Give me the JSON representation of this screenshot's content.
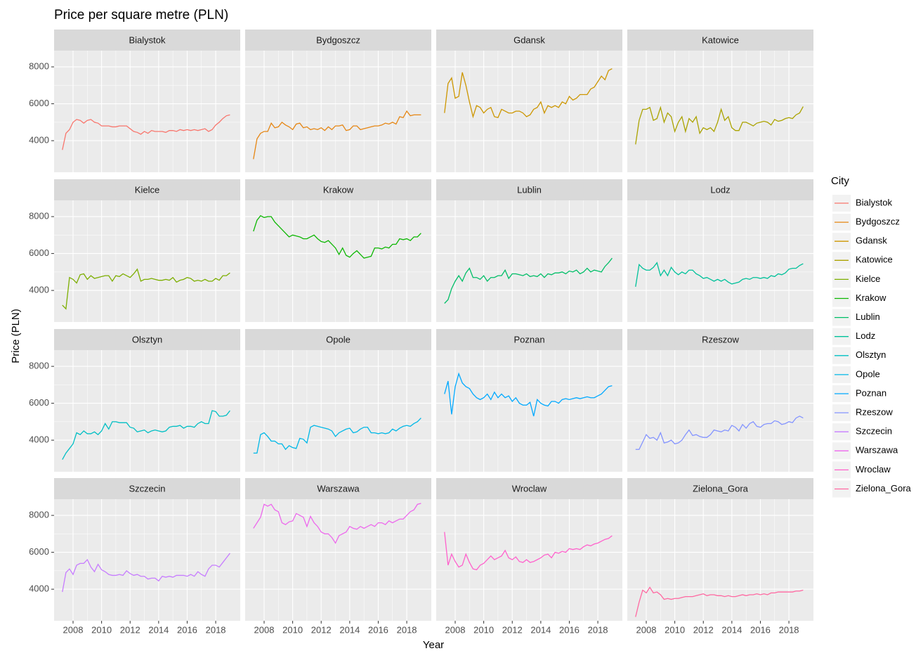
{
  "chart_data": {
    "type": "line",
    "facet": true,
    "title": "Price per square metre (PLN)",
    "xlabel": "Year",
    "ylabel": "Price (PLN)",
    "legend_title": "City",
    "legend": "right",
    "grid": true,
    "x": [
      2007.25,
      2007.5,
      2007.75,
      2008,
      2008.25,
      2008.5,
      2008.75,
      2009,
      2009.25,
      2009.5,
      2009.75,
      2010,
      2010.25,
      2010.5,
      2010.75,
      2011,
      2011.25,
      2011.5,
      2011.75,
      2012,
      2012.25,
      2012.5,
      2012.75,
      2013,
      2013.25,
      2013.5,
      2013.75,
      2014,
      2014.25,
      2014.5,
      2014.75,
      2015,
      2015.25,
      2015.5,
      2015.75,
      2016,
      2016.25,
      2016.5,
      2016.75,
      2017,
      2017.25,
      2017.5,
      2017.75,
      2018,
      2018.25,
      2018.5,
      2018.75,
      2019
    ],
    "xlim": [
      2006.67,
      2019.72
    ],
    "xticks": [
      2008,
      2010,
      2012,
      2014,
      2016,
      2018
    ],
    "ylim": [
      2290,
      8880
    ],
    "yticks": [
      4000,
      6000,
      8000
    ],
    "series": [
      {
        "name": "Bialystok",
        "color": "#F8766D",
        "values": [
          3500,
          4400,
          4600,
          5000,
          5150,
          5100,
          4950,
          5100,
          5150,
          5000,
          4950,
          4800,
          4800,
          4800,
          4750,
          4750,
          4800,
          4800,
          4800,
          4650,
          4500,
          4450,
          4350,
          4500,
          4400,
          4550,
          4500,
          4500,
          4500,
          4450,
          4550,
          4550,
          4500,
          4600,
          4550,
          4600,
          4550,
          4600,
          4550,
          4600,
          4650,
          4500,
          4600,
          4850,
          5000,
          5200,
          5350,
          5400
        ]
      },
      {
        "name": "Bydgoszcz",
        "color": "#E68613",
        "values": [
          3000,
          4100,
          4400,
          4500,
          4500,
          4950,
          4700,
          4750,
          5000,
          4850,
          4750,
          4600,
          4900,
          4950,
          4700,
          4750,
          4600,
          4650,
          4600,
          4700,
          4550,
          4750,
          4600,
          4800,
          4800,
          4850,
          4550,
          4600,
          4800,
          4800,
          4600,
          4650,
          4700,
          4750,
          4800,
          4800,
          4850,
          4950,
          4900,
          5000,
          4900,
          5300,
          5250,
          5600,
          5350,
          5400,
          5400,
          5400
        ]
      },
      {
        "name": "Gdansk",
        "color": "#CD9600",
        "values": [
          5500,
          7100,
          7400,
          6300,
          6400,
          7700,
          7000,
          6100,
          5300,
          5900,
          5800,
          5500,
          5700,
          5800,
          5300,
          5250,
          5700,
          5600,
          5500,
          5500,
          5600,
          5600,
          5500,
          5300,
          5400,
          5700,
          5800,
          6100,
          5500,
          5900,
          5800,
          5900,
          5800,
          6100,
          6000,
          6400,
          6200,
          6300,
          6500,
          6500,
          6500,
          6800,
          6900,
          7200,
          7500,
          7300,
          7800,
          7900
        ]
      },
      {
        "name": "Katowice",
        "color": "#ABA300",
        "values": [
          3800,
          5100,
          5700,
          5700,
          5800,
          5100,
          5200,
          5800,
          5000,
          5500,
          5300,
          4500,
          5000,
          5300,
          4500,
          5200,
          5000,
          5300,
          4400,
          4700,
          4600,
          4700,
          4500,
          5000,
          5700,
          5100,
          5300,
          4700,
          4550,
          4550,
          5000,
          5000,
          4900,
          4800,
          4950,
          5000,
          5050,
          5000,
          4850,
          5150,
          5050,
          5100,
          5200,
          5250,
          5200,
          5400,
          5500,
          5850
        ]
      },
      {
        "name": "Kielce",
        "color": "#7CAE00",
        "values": [
          3200,
          3000,
          4700,
          4600,
          4400,
          4850,
          4900,
          4600,
          4800,
          4650,
          4700,
          4750,
          4800,
          4800,
          4500,
          4800,
          4750,
          4900,
          4800,
          4700,
          4900,
          5150,
          4500,
          4600,
          4600,
          4650,
          4600,
          4550,
          4550,
          4600,
          4550,
          4700,
          4450,
          4550,
          4600,
          4700,
          4650,
          4500,
          4550,
          4500,
          4600,
          4500,
          4500,
          4650,
          4550,
          4800,
          4800,
          4950
        ]
      },
      {
        "name": "Krakow",
        "color": "#0CB702",
        "values": [
          7200,
          7800,
          8050,
          7950,
          8000,
          8000,
          7700,
          7500,
          7300,
          7100,
          6900,
          7000,
          6950,
          6900,
          6800,
          6800,
          6900,
          7000,
          6800,
          6650,
          6600,
          6700,
          6500,
          6300,
          5950,
          6300,
          5900,
          5800,
          6000,
          6150,
          5950,
          5750,
          5800,
          5850,
          6300,
          6300,
          6250,
          6350,
          6300,
          6500,
          6500,
          6800,
          6750,
          6800,
          6700,
          6900,
          6900,
          7100
        ]
      },
      {
        "name": "Lublin",
        "color": "#00BE67",
        "values": [
          3300,
          3500,
          4100,
          4500,
          4800,
          4500,
          4950,
          5200,
          4700,
          4700,
          4600,
          4800,
          4500,
          4700,
          4700,
          4800,
          4800,
          5100,
          4650,
          4900,
          4900,
          4850,
          4800,
          4900,
          4750,
          4800,
          4750,
          4900,
          4700,
          4900,
          4850,
          4950,
          4950,
          5000,
          4900,
          5050,
          5000,
          5100,
          4900,
          5000,
          5200,
          5000,
          5100,
          5050,
          5000,
          5300,
          5500,
          5750
        ]
      },
      {
        "name": "Lodz",
        "color": "#00C19A",
        "values": [
          4200,
          5400,
          5200,
          5100,
          5100,
          5250,
          5500,
          4800,
          5100,
          4800,
          5250,
          5000,
          4850,
          5000,
          4900,
          5100,
          5100,
          4900,
          4800,
          4650,
          4700,
          4600,
          4500,
          4600,
          4500,
          4600,
          4450,
          4350,
          4400,
          4450,
          4600,
          4650,
          4600,
          4700,
          4700,
          4650,
          4700,
          4650,
          4800,
          4750,
          4900,
          4850,
          4950,
          5150,
          5200,
          5200,
          5350,
          5450
        ]
      },
      {
        "name": "Olsztyn",
        "color": "#00BFC4",
        "values": [
          2950,
          3300,
          3550,
          3800,
          4400,
          4300,
          4500,
          4350,
          4350,
          4450,
          4300,
          4500,
          4900,
          4600,
          5000,
          5000,
          4950,
          4950,
          4950,
          4700,
          4650,
          4450,
          4500,
          4550,
          4400,
          4500,
          4550,
          4500,
          4450,
          4500,
          4700,
          4750,
          4750,
          4800,
          4650,
          4750,
          4750,
          4700,
          4900,
          5000,
          4900,
          4900,
          5600,
          5550,
          5300,
          5300,
          5350,
          5600
        ]
      },
      {
        "name": "Opole",
        "color": "#00B8E7",
        "values": [
          3300,
          3300,
          4300,
          4400,
          4200,
          3950,
          3950,
          3800,
          3800,
          3500,
          3700,
          3600,
          3550,
          4100,
          4050,
          3850,
          4700,
          4800,
          4750,
          4700,
          4650,
          4600,
          4500,
          4200,
          4400,
          4500,
          4600,
          4650,
          4400,
          4450,
          4600,
          4700,
          4700,
          4400,
          4400,
          4350,
          4400,
          4350,
          4400,
          4600,
          4500,
          4650,
          4750,
          4800,
          4750,
          4900,
          5000,
          5200
        ]
      },
      {
        "name": "Poznan",
        "color": "#00A9FF",
        "values": [
          6500,
          7200,
          5400,
          6900,
          7600,
          7100,
          6900,
          6800,
          6500,
          6300,
          6200,
          6300,
          6500,
          6200,
          6600,
          6300,
          6500,
          6300,
          6400,
          6100,
          6300,
          6000,
          5900,
          5900,
          6050,
          5300,
          6200,
          6000,
          5900,
          5850,
          6100,
          6100,
          6000,
          6200,
          6250,
          6200,
          6250,
          6300,
          6250,
          6300,
          6350,
          6300,
          6300,
          6400,
          6500,
          6700,
          6900,
          6950
        ]
      },
      {
        "name": "Rzeszow",
        "color": "#8494FF",
        "values": [
          3500,
          3500,
          3900,
          4300,
          4100,
          4150,
          4000,
          4400,
          3850,
          3900,
          4000,
          3800,
          3850,
          4000,
          4300,
          4550,
          4250,
          4300,
          4200,
          4150,
          4150,
          4300,
          4550,
          4500,
          4450,
          4550,
          4500,
          4800,
          4700,
          4500,
          4850,
          4650,
          4900,
          5000,
          4750,
          4700,
          4850,
          4900,
          4900,
          5050,
          5000,
          4850,
          4900,
          5000,
          4950,
          5200,
          5300,
          5200
        ]
      },
      {
        "name": "Szczecin",
        "color": "#C77CFF",
        "values": [
          3850,
          4900,
          5100,
          4800,
          5300,
          5400,
          5400,
          5600,
          5200,
          4950,
          5350,
          5050,
          4950,
          4800,
          4750,
          4750,
          4800,
          4750,
          5000,
          4850,
          4750,
          4800,
          4700,
          4700,
          4550,
          4600,
          4600,
          4450,
          4700,
          4650,
          4700,
          4650,
          4750,
          4750,
          4750,
          4700,
          4800,
          4700,
          4950,
          4800,
          4700,
          5100,
          5300,
          5300,
          5200,
          5450,
          5700,
          5950
        ]
      },
      {
        "name": "Warszawa",
        "color": "#ED68ED",
        "values": [
          7300,
          7600,
          7900,
          8600,
          8500,
          8600,
          8300,
          8200,
          7600,
          7500,
          7650,
          7700,
          8100,
          8000,
          7900,
          7400,
          7950,
          7600,
          7400,
          7100,
          7000,
          7000,
          6800,
          6500,
          6900,
          7000,
          7100,
          7400,
          7300,
          7250,
          7400,
          7300,
          7400,
          7500,
          7400,
          7600,
          7600,
          7500,
          7700,
          7600,
          7700,
          7800,
          7800,
          8000,
          8200,
          8300,
          8600,
          8650
        ]
      },
      {
        "name": "Wroclaw",
        "color": "#FF61CC",
        "values": [
          7100,
          5300,
          5900,
          5500,
          5200,
          5300,
          5900,
          5450,
          5100,
          5050,
          5300,
          5400,
          5600,
          5800,
          5600,
          5700,
          5800,
          6100,
          5700,
          5600,
          5750,
          5500,
          5450,
          5600,
          5450,
          5500,
          5600,
          5700,
          5850,
          5900,
          5700,
          6000,
          5950,
          6050,
          6000,
          6200,
          6150,
          6200,
          6150,
          6300,
          6400,
          6350,
          6450,
          6500,
          6600,
          6700,
          6750,
          6900
        ]
      },
      {
        "name": "Zielona_Gora",
        "color": "#FF68A1",
        "values": [
          2500,
          3300,
          3950,
          3800,
          4100,
          3800,
          3850,
          3700,
          3450,
          3500,
          3450,
          3500,
          3500,
          3550,
          3600,
          3600,
          3600,
          3650,
          3700,
          3750,
          3650,
          3700,
          3700,
          3650,
          3650,
          3600,
          3650,
          3600,
          3600,
          3650,
          3700,
          3650,
          3700,
          3700,
          3750,
          3700,
          3750,
          3700,
          3800,
          3800,
          3850,
          3850,
          3850,
          3850,
          3850,
          3900,
          3900,
          3950
        ]
      }
    ]
  }
}
